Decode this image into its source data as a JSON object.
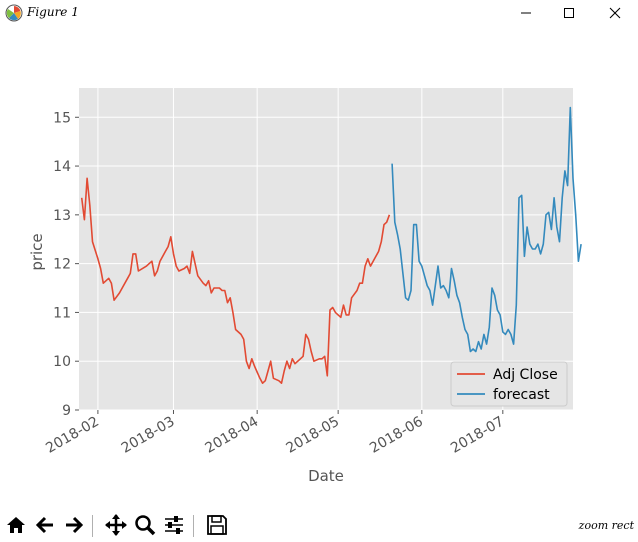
{
  "window": {
    "title": "Figure 1",
    "icon": "matplotlib-icon",
    "controls": [
      "minimize-icon",
      "maximize-icon",
      "close-icon"
    ]
  },
  "toolbar": {
    "buttons": [
      "home-icon",
      "back-arrow-icon",
      "forward-arrow-icon",
      "pan-icon",
      "zoom-icon",
      "subplots-config-icon",
      "save-icon"
    ],
    "status": "zoom rect"
  },
  "chart_data": {
    "type": "line",
    "xlabel": "Date",
    "ylabel": "price",
    "ylim": [
      9,
      15.6
    ],
    "yticks": [
      9,
      10,
      11,
      12,
      13,
      14,
      15
    ],
    "xlim": [
      "2018-01-25",
      "2018-07-27"
    ],
    "xticks": [
      {
        "date": "2018-02-01",
        "label": "2018-02"
      },
      {
        "date": "2018-03-01",
        "label": "2018-03"
      },
      {
        "date": "2018-04-01",
        "label": "2018-04"
      },
      {
        "date": "2018-05-01",
        "label": "2018-05"
      },
      {
        "date": "2018-06-01",
        "label": "2018-06"
      },
      {
        "date": "2018-07-01",
        "label": "2018-07"
      }
    ],
    "grid": true,
    "background": "#e5e5e5",
    "legend": "lower-right",
    "series": [
      {
        "name": "Adj Close",
        "color": "#e24a33",
        "points": [
          [
            "2018-01-26",
            13.35
          ],
          [
            "2018-01-27",
            12.9
          ],
          [
            "2018-01-28",
            13.75
          ],
          [
            "2018-01-29",
            13.2
          ],
          [
            "2018-01-30",
            12.45
          ],
          [
            "2018-02-01",
            12.1
          ],
          [
            "2018-02-02",
            11.9
          ],
          [
            "2018-02-03",
            11.6
          ],
          [
            "2018-02-05",
            11.7
          ],
          [
            "2018-02-06",
            11.6
          ],
          [
            "2018-02-07",
            11.25
          ],
          [
            "2018-02-09",
            11.4
          ],
          [
            "2018-02-10",
            11.5
          ],
          [
            "2018-02-12",
            11.7
          ],
          [
            "2018-02-13",
            11.8
          ],
          [
            "2018-02-14",
            12.2
          ],
          [
            "2018-02-15",
            12.2
          ],
          [
            "2018-02-16",
            11.85
          ],
          [
            "2018-02-19",
            11.95
          ],
          [
            "2018-02-20",
            12.0
          ],
          [
            "2018-02-21",
            12.05
          ],
          [
            "2018-02-22",
            11.75
          ],
          [
            "2018-02-23",
            11.85
          ],
          [
            "2018-02-24",
            12.05
          ],
          [
            "2018-02-26",
            12.25
          ],
          [
            "2018-02-27",
            12.35
          ],
          [
            "2018-02-28",
            12.55
          ],
          [
            "2018-03-01",
            12.2
          ],
          [
            "2018-03-02",
            11.95
          ],
          [
            "2018-03-03",
            11.85
          ],
          [
            "2018-03-05",
            11.9
          ],
          [
            "2018-03-06",
            11.95
          ],
          [
            "2018-03-07",
            11.8
          ],
          [
            "2018-03-08",
            12.25
          ],
          [
            "2018-03-10",
            11.75
          ],
          [
            "2018-03-12",
            11.6
          ],
          [
            "2018-03-13",
            11.55
          ],
          [
            "2018-03-14",
            11.65
          ],
          [
            "2018-03-15",
            11.4
          ],
          [
            "2018-03-16",
            11.5
          ],
          [
            "2018-03-18",
            11.5
          ],
          [
            "2018-03-19",
            11.45
          ],
          [
            "2018-03-20",
            11.45
          ],
          [
            "2018-03-21",
            11.2
          ],
          [
            "2018-03-22",
            11.3
          ],
          [
            "2018-03-23",
            11.0
          ],
          [
            "2018-03-24",
            10.65
          ],
          [
            "2018-03-26",
            10.55
          ],
          [
            "2018-03-27",
            10.45
          ],
          [
            "2018-03-28",
            10.0
          ],
          [
            "2018-03-29",
            9.85
          ],
          [
            "2018-03-30",
            10.05
          ],
          [
            "2018-03-31",
            9.9
          ],
          [
            "2018-04-02",
            9.65
          ],
          [
            "2018-04-03",
            9.55
          ],
          [
            "2018-04-04",
            9.6
          ],
          [
            "2018-04-05",
            9.8
          ],
          [
            "2018-04-06",
            10.0
          ],
          [
            "2018-04-07",
            9.65
          ],
          [
            "2018-04-09",
            9.6
          ],
          [
            "2018-04-10",
            9.55
          ],
          [
            "2018-04-11",
            9.8
          ],
          [
            "2018-04-12",
            10.0
          ],
          [
            "2018-04-13",
            9.85
          ],
          [
            "2018-04-14",
            10.05
          ],
          [
            "2018-04-15",
            9.95
          ],
          [
            "2018-04-17",
            10.05
          ],
          [
            "2018-04-18",
            10.1
          ],
          [
            "2018-04-19",
            10.55
          ],
          [
            "2018-04-20",
            10.45
          ],
          [
            "2018-04-21",
            10.2
          ],
          [
            "2018-04-22",
            10.0
          ],
          [
            "2018-04-24",
            10.05
          ],
          [
            "2018-04-25",
            10.05
          ],
          [
            "2018-04-26",
            10.1
          ],
          [
            "2018-04-27",
            9.7
          ],
          [
            "2018-04-28",
            11.05
          ],
          [
            "2018-04-29",
            11.1
          ],
          [
            "2018-04-30",
            11.0
          ],
          [
            "2018-05-01",
            10.95
          ],
          [
            "2018-05-02",
            10.9
          ],
          [
            "2018-05-03",
            11.15
          ],
          [
            "2018-05-04",
            10.95
          ],
          [
            "2018-05-05",
            10.95
          ],
          [
            "2018-05-06",
            11.3
          ],
          [
            "2018-05-08",
            11.45
          ],
          [
            "2018-05-09",
            11.6
          ],
          [
            "2018-05-10",
            11.6
          ],
          [
            "2018-05-11",
            11.95
          ],
          [
            "2018-05-12",
            12.1
          ],
          [
            "2018-05-13",
            11.95
          ],
          [
            "2018-05-15",
            12.15
          ],
          [
            "2018-05-16",
            12.25
          ],
          [
            "2018-05-17",
            12.45
          ],
          [
            "2018-05-18",
            12.8
          ],
          [
            "2018-05-19",
            12.85
          ],
          [
            "2018-05-20",
            13.0
          ]
        ]
      },
      {
        "name": "forecast",
        "color": "#348abd",
        "points": [
          [
            "2018-05-21",
            14.05
          ],
          [
            "2018-05-22",
            12.85
          ],
          [
            "2018-05-23",
            12.6
          ],
          [
            "2018-05-24",
            12.3
          ],
          [
            "2018-05-25",
            11.8
          ],
          [
            "2018-05-26",
            11.3
          ],
          [
            "2018-05-27",
            11.25
          ],
          [
            "2018-05-28",
            11.45
          ],
          [
            "2018-05-29",
            12.8
          ],
          [
            "2018-05-30",
            12.8
          ],
          [
            "2018-05-31",
            12.05
          ],
          [
            "2018-06-01",
            11.95
          ],
          [
            "2018-06-02",
            11.75
          ],
          [
            "2018-06-03",
            11.55
          ],
          [
            "2018-06-04",
            11.45
          ],
          [
            "2018-06-05",
            11.15
          ],
          [
            "2018-06-06",
            11.55
          ],
          [
            "2018-06-07",
            11.95
          ],
          [
            "2018-06-08",
            11.5
          ],
          [
            "2018-06-09",
            11.55
          ],
          [
            "2018-06-10",
            11.45
          ],
          [
            "2018-06-11",
            11.3
          ],
          [
            "2018-06-12",
            11.9
          ],
          [
            "2018-06-13",
            11.65
          ],
          [
            "2018-06-14",
            11.35
          ],
          [
            "2018-06-15",
            11.2
          ],
          [
            "2018-06-16",
            10.9
          ],
          [
            "2018-06-17",
            10.65
          ],
          [
            "2018-06-18",
            10.55
          ],
          [
            "2018-06-19",
            10.2
          ],
          [
            "2018-06-20",
            10.25
          ],
          [
            "2018-06-21",
            10.2
          ],
          [
            "2018-06-22",
            10.4
          ],
          [
            "2018-06-23",
            10.25
          ],
          [
            "2018-06-24",
            10.55
          ],
          [
            "2018-06-25",
            10.35
          ],
          [
            "2018-06-26",
            10.7
          ],
          [
            "2018-06-27",
            11.5
          ],
          [
            "2018-06-28",
            11.35
          ],
          [
            "2018-06-29",
            11.05
          ],
          [
            "2018-06-30",
            10.95
          ],
          [
            "2018-07-01",
            10.6
          ],
          [
            "2018-07-02",
            10.55
          ],
          [
            "2018-07-03",
            10.65
          ],
          [
            "2018-07-04",
            10.55
          ],
          [
            "2018-07-05",
            10.35
          ],
          [
            "2018-07-06",
            11.15
          ],
          [
            "2018-07-07",
            13.35
          ],
          [
            "2018-07-08",
            13.4
          ],
          [
            "2018-07-09",
            12.15
          ],
          [
            "2018-07-10",
            12.75
          ],
          [
            "2018-07-11",
            12.4
          ],
          [
            "2018-07-12",
            12.3
          ],
          [
            "2018-07-13",
            12.3
          ],
          [
            "2018-07-14",
            12.4
          ],
          [
            "2018-07-15",
            12.2
          ],
          [
            "2018-07-16",
            12.4
          ],
          [
            "2018-07-17",
            13.0
          ],
          [
            "2018-07-18",
            13.05
          ],
          [
            "2018-07-19",
            12.7
          ],
          [
            "2018-07-20",
            13.35
          ],
          [
            "2018-07-21",
            12.75
          ],
          [
            "2018-07-22",
            12.45
          ],
          [
            "2018-07-23",
            13.35
          ],
          [
            "2018-07-24",
            13.9
          ],
          [
            "2018-07-25",
            13.6
          ],
          [
            "2018-07-26",
            15.2
          ],
          [
            "2018-07-27",
            13.75
          ],
          [
            "2018-07-28",
            13.0
          ],
          [
            "2018-07-29",
            12.05
          ],
          [
            "2018-07-30",
            12.4
          ]
        ]
      }
    ]
  }
}
